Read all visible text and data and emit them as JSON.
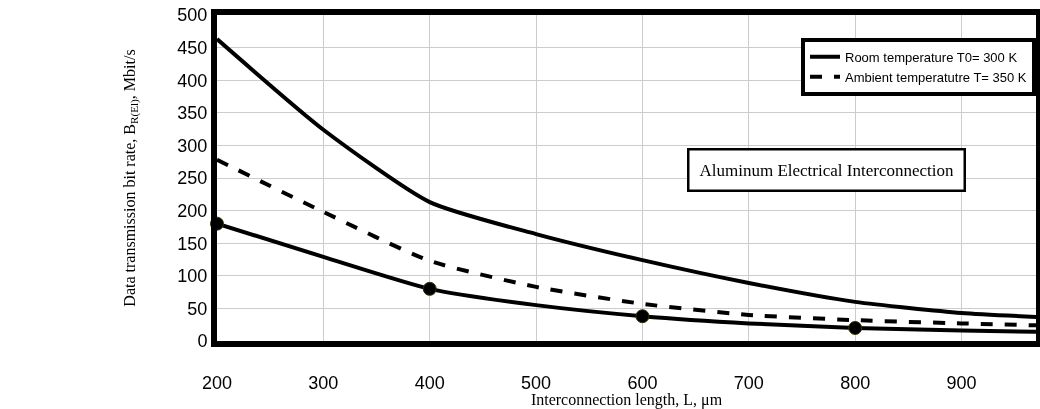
{
  "chart_data": {
    "type": "line",
    "xlabel": "Interconnection length, L, μm",
    "ylabel": "Data transmission bit rate, B$_{R(El)}$, Mbit/s",
    "xlim": [
      200,
      970
    ],
    "xticks": [
      200,
      300,
      400,
      500,
      600,
      700,
      800,
      900
    ],
    "ylim": [
      0,
      500
    ],
    "yticks": [
      0,
      50,
      100,
      150,
      200,
      250,
      300,
      350,
      400,
      450,
      500
    ],
    "grid": true,
    "legend": "top right",
    "annotations": [
      "Aluminum Electrical Interconnection"
    ],
    "series": [
      {
        "name": "Room temperature T0= 300 K",
        "color": "#000000",
        "line_style": "solid",
        "marker": "none",
        "x": [
          200,
          300,
          400,
          500,
          600,
          700,
          800,
          900,
          970
        ],
        "values": [
          463,
          324,
          213,
          164,
          124,
          89,
          60,
          43,
          37
        ]
      },
      {
        "name": "Ambient temperatutre T= 350 K",
        "color": "#000000",
        "line_style": "dashed",
        "marker": "none",
        "x": [
          200,
          300,
          400,
          500,
          600,
          700,
          800,
          900,
          970
        ],
        "values": [
          278,
          198,
          123,
          83,
          57,
          40,
          32,
          27,
          24
        ]
      },
      {
        "color": "#000000",
        "line_style": "solid",
        "marker": "none",
        "x": [
          200,
          300,
          400,
          500,
          600,
          700,
          800,
          900,
          970
        ],
        "values": [
          180,
          129,
          80,
          55,
          38,
          27,
          20,
          16,
          14
        ]
      },
      {
        "type": "scatter",
        "color": "#000000",
        "marker": "circle",
        "x": [
          200,
          400,
          600,
          800
        ],
        "values": [
          180,
          80,
          38,
          20
        ]
      }
    ]
  }
}
